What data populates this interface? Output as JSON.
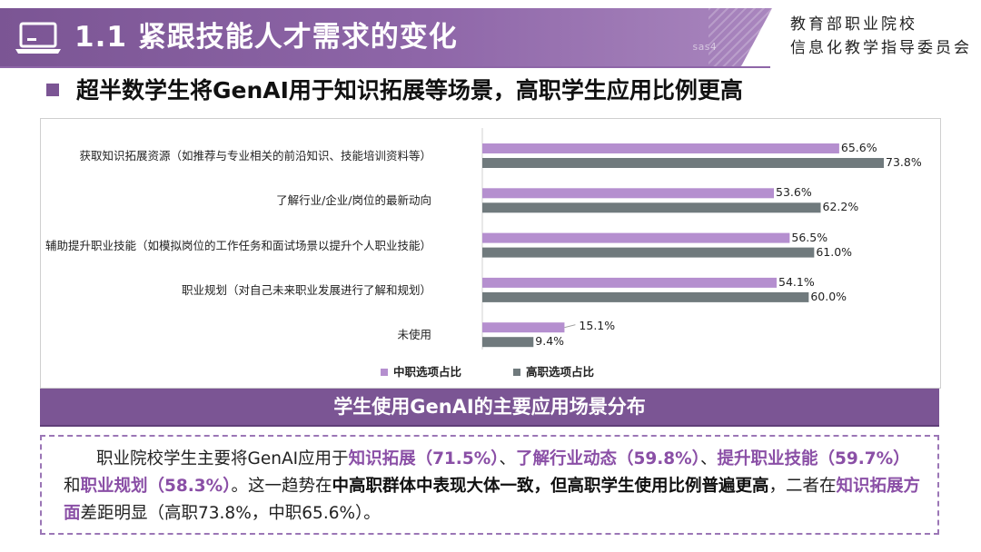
{
  "header": {
    "title": "1.1 紧跟技能人才需求的变化",
    "watermark": "sas4",
    "org_line1": "教育部职业院校",
    "org_line2": "信息化教学指导委员会"
  },
  "subtitle": "超半数学生将GenAI用于知识拓展等场景，高职学生应用比例更高",
  "chart_data": {
    "type": "bar",
    "orientation": "horizontal",
    "categories": [
      "获取知识拓展资源（如推荐与专业相关的前沿知识、技能培训资料等）",
      "了解行业/企业/岗位的最新动向",
      "辅助提升职业技能（如模拟岗位的工作任务和面试场景以提升个人职业技能）",
      "职业规划（对自己未来职业发展进行了解和规划）",
      "未使用"
    ],
    "series": [
      {
        "name": "中职选项占比",
        "color": "#b58fcf",
        "values": [
          65.6,
          53.6,
          56.5,
          54.1,
          15.1
        ],
        "labels": [
          "65.6%",
          "53.6%",
          "56.5%",
          "54.1%",
          "15.1%"
        ]
      },
      {
        "name": "高职选项占比",
        "color": "#707a7d",
        "values": [
          73.8,
          62.2,
          61.0,
          60.0,
          9.4
        ],
        "labels": [
          "73.8%",
          "62.2%",
          "61.0%",
          "60.0%",
          "9.4%"
        ]
      }
    ],
    "xlim": [
      0,
      80
    ],
    "grid": false,
    "legend_position": "bottom"
  },
  "caption": "学生使用GenAI的主要应用场景分布",
  "summary": {
    "s1": "职业院校学生主要将GenAI应用于",
    "h1": "知识拓展（71.5%）",
    "s2": "、",
    "h2": "了解行业动态（59.8%）",
    "s3": "、",
    "h3": "提升职业技能（59.7%）",
    "s4": "和",
    "h4": "职业规划（58.3%）",
    "s5": "。这一趋势在",
    "b1": "中高职群体中表现大体一致，但高职学生使用比例普遍更高",
    "s6": "，二者在",
    "h5": "知识拓展方面",
    "s7": "差距明显（高职73.8%，中职65.6%）。"
  }
}
